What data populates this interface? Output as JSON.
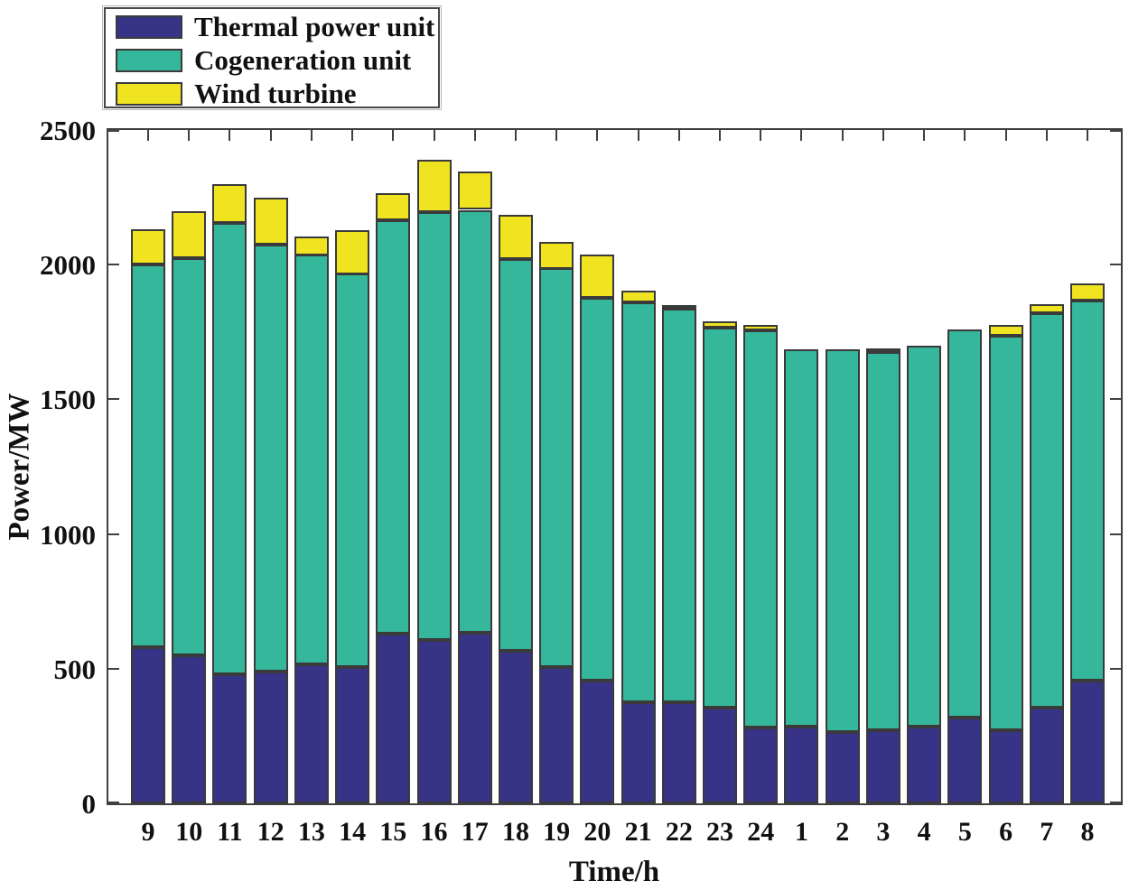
{
  "figure": {
    "ylabel": "Power/MW",
    "xlabel": "Time/h"
  },
  "legend": {
    "items": [
      {
        "name": "thermal-power-unit",
        "label": "Thermal power unit",
        "color": "#373487"
      },
      {
        "name": "cogeneration-unit",
        "label": "Cogeneration unit",
        "color": "#35b79c"
      },
      {
        "name": "wind-turbine",
        "label": "Wind turbine",
        "color": "#efe41f"
      }
    ]
  },
  "chart_data": {
    "type": "bar",
    "stacked": true,
    "title": "",
    "xlabel": "Time/h",
    "ylabel": "Power/MW",
    "ylim": [
      0,
      2500
    ],
    "yticks": [
      0,
      500,
      1000,
      1500,
      2000,
      2500
    ],
    "grid": false,
    "legend_position": "top-left",
    "categories": [
      "9",
      "10",
      "11",
      "12",
      "13",
      "14",
      "15",
      "16",
      "17",
      "18",
      "19",
      "20",
      "21",
      "22",
      "23",
      "24",
      "1",
      "2",
      "3",
      "4",
      "5",
      "6",
      "7",
      "8"
    ],
    "series": [
      {
        "name": "Thermal power unit",
        "color": "#373487",
        "values": [
          580,
          550,
          480,
          490,
          515,
          505,
          630,
          605,
          635,
          565,
          505,
          455,
          375,
          375,
          355,
          280,
          285,
          265,
          270,
          285,
          320,
          270,
          355,
          455
        ]
      },
      {
        "name": "Cogeneration unit",
        "color": "#35b79c",
        "values": [
          1420,
          1475,
          1675,
          1585,
          1520,
          1460,
          1535,
          1590,
          1570,
          1455,
          1480,
          1420,
          1485,
          1460,
          1410,
          1475,
          1400,
          1420,
          1405,
          1415,
          1440,
          1465,
          1465,
          1410
        ]
      },
      {
        "name": "Wind turbine",
        "color": "#efe41f",
        "values": [
          130,
          175,
          145,
          175,
          70,
          165,
          100,
          195,
          140,
          165,
          100,
          160,
          45,
          15,
          25,
          20,
          0,
          0,
          15,
          0,
          0,
          40,
          35,
          65
        ]
      }
    ],
    "totals": [
      2130,
      2200,
      2300,
      2250,
      2105,
      2130,
      2265,
      2390,
      2345,
      2185,
      2085,
      2035,
      1905,
      1850,
      1790,
      1775,
      1685,
      1685,
      1690,
      1700,
      1760,
      1775,
      1855,
      1930
    ]
  }
}
